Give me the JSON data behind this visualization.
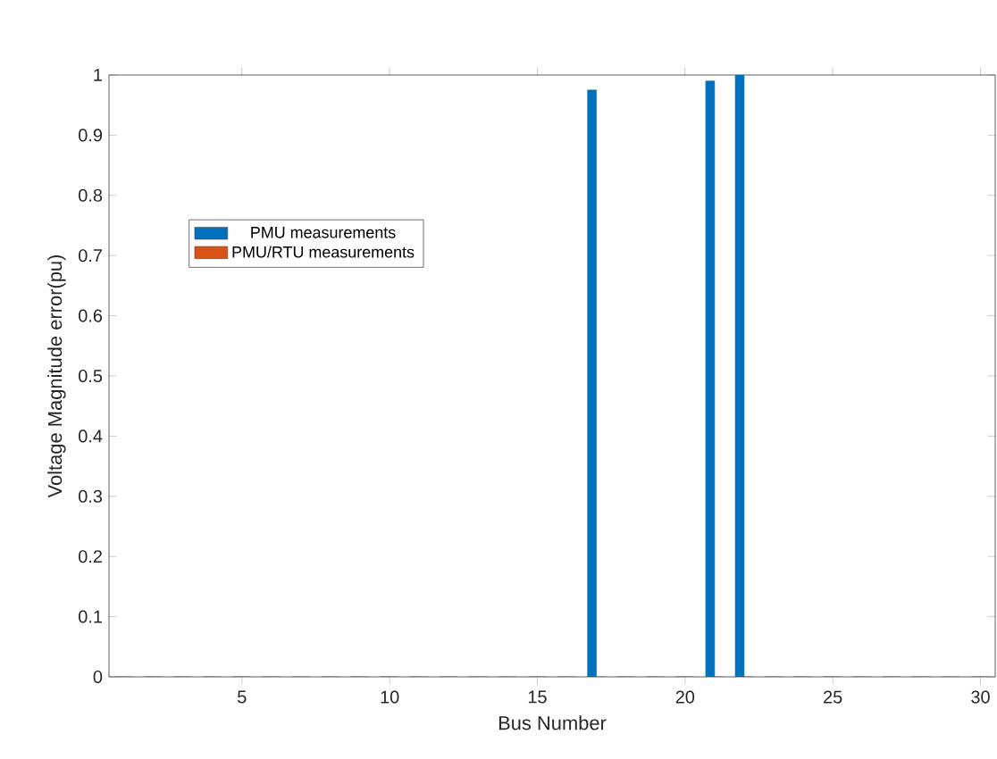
{
  "chart_data": {
    "type": "bar",
    "xlabel": "Bus Number",
    "ylabel": "Voltage Magnitude error(pu)",
    "x": [
      1,
      2,
      3,
      4,
      5,
      6,
      7,
      8,
      9,
      10,
      11,
      12,
      13,
      14,
      15,
      16,
      17,
      18,
      19,
      20,
      21,
      22,
      23,
      24,
      25,
      26,
      27,
      28,
      29,
      30
    ],
    "series": [
      {
        "name": "PMU measurements",
        "color": "#0072bd",
        "values": [
          0,
          0,
          0,
          0,
          0,
          0,
          0,
          0,
          0,
          0,
          0,
          0,
          0,
          0,
          0,
          0,
          0.975,
          0,
          0,
          0,
          0.99,
          1.0,
          0,
          0,
          0,
          0,
          0,
          0,
          0,
          0
        ]
      },
      {
        "name": "PMU/RTU measurements",
        "color": "#d95319",
        "values": [
          0,
          0,
          0,
          0,
          0,
          0,
          0,
          0,
          0,
          0,
          0,
          0,
          0,
          0,
          0,
          0,
          0,
          0,
          0,
          0,
          0,
          0,
          0,
          0,
          0,
          0,
          0,
          0,
          0,
          0
        ]
      }
    ],
    "xlim": [
      0.5,
      30.5
    ],
    "xticks": [
      5,
      10,
      15,
      20,
      25,
      30
    ],
    "ylim": [
      0,
      1
    ],
    "yticks": [
      0,
      0.1,
      0.2,
      0.3,
      0.4,
      0.5,
      0.6,
      0.7,
      0.8,
      0.9,
      1
    ],
    "legend": "left"
  }
}
